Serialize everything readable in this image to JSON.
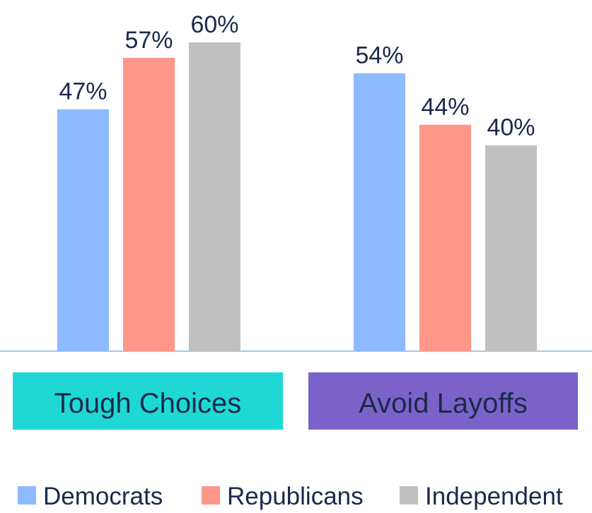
{
  "chart_data": {
    "type": "bar",
    "categories": [
      "Tough Choices",
      "Avoid Layoffs"
    ],
    "category_colors": [
      "#1fd8d6",
      "#7b62c9"
    ],
    "series": [
      {
        "name": "Democrats",
        "color": "#8ebaff",
        "values": [
          47,
          54
        ],
        "value_labels": [
          "47%",
          "54%"
        ]
      },
      {
        "name": "Republicans",
        "color": "#ff968a",
        "values": [
          57,
          44
        ],
        "value_labels": [
          "57%",
          "44%"
        ]
      },
      {
        "name": "Independent",
        "color": "#c0c0c0",
        "values": [
          60,
          40
        ],
        "value_labels": [
          "60%",
          "40%"
        ]
      }
    ]
  }
}
